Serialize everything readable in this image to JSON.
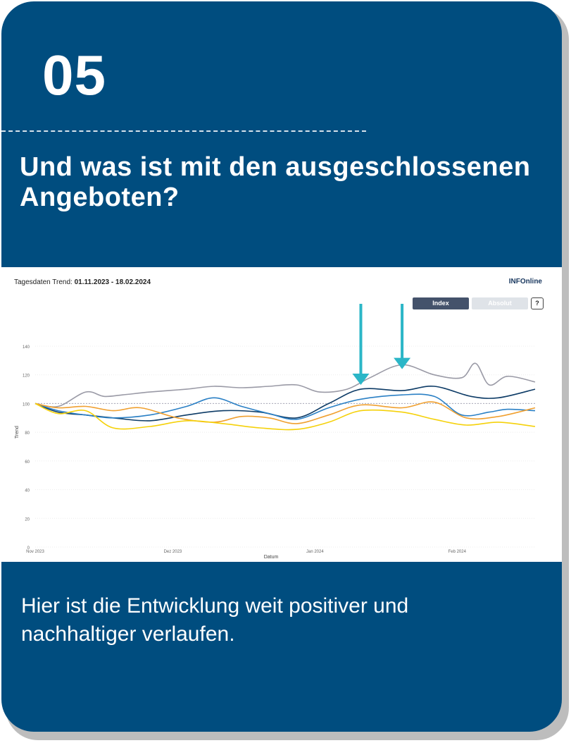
{
  "slide": {
    "number": "05",
    "heading": "Und was ist mit den ausgeschlossenen Angeboten?",
    "body": "Hier ist die Entwicklung weit positiver und nachhaltiger verlaufen.",
    "background_color": "#004d7f"
  },
  "panel": {
    "title_prefix": "Tagesdaten Trend:",
    "title_range": "01.11.2023 - 18.02.2024",
    "logo_text": "INFOnline",
    "buttons": {
      "index": "Index",
      "absolut": "Absolut",
      "help": "?"
    }
  },
  "chart_data": {
    "type": "line",
    "xlabel": "Datum",
    "ylabel": "Trend",
    "x_ticks": [
      {
        "label": "Nov 2023",
        "date": "2023-11-01"
      },
      {
        "label": "Dez 2023",
        "date": "2023-12-01"
      },
      {
        "label": "Jan 2024",
        "date": "2024-01-01"
      },
      {
        "label": "Feb 2024",
        "date": "2024-02-01"
      }
    ],
    "y_ticks": [
      0,
      20,
      40,
      60,
      80,
      100,
      120,
      140
    ],
    "ylim": [
      0,
      140
    ],
    "xlim": [
      "2023-11-01",
      "2024-02-18"
    ],
    "reference_line": 100,
    "grid": true,
    "annotations": [
      {
        "type": "arrow-down",
        "date": "2024-01-11",
        "value": 113,
        "color": "#2bb6c7"
      },
      {
        "type": "arrow-down",
        "date": "2024-01-20",
        "value": 124,
        "color": "#2bb6c7"
      }
    ],
    "series": [
      {
        "color": "#9a9aa6",
        "dates": [
          "2023-11-01",
          "2023-11-06",
          "2023-11-12",
          "2023-11-16",
          "2023-11-20",
          "2023-11-26",
          "2023-12-04",
          "2023-12-10",
          "2023-12-16",
          "2023-12-22",
          "2023-12-28",
          "2024-01-02",
          "2024-01-08",
          "2024-01-13",
          "2024-01-20",
          "2024-01-27",
          "2024-02-02",
          "2024-02-05",
          "2024-02-08",
          "2024-02-12",
          "2024-02-18"
        ],
        "values": [
          100,
          98,
          108,
          105,
          106,
          108,
          110,
          112,
          111,
          112,
          113,
          108,
          110,
          118,
          127,
          120,
          118,
          128,
          113,
          119,
          115
        ]
      },
      {
        "color": "#0d3b66",
        "dates": [
          "2023-11-01",
          "2023-11-06",
          "2023-11-12",
          "2023-11-18",
          "2023-11-26",
          "2023-12-04",
          "2023-12-12",
          "2023-12-20",
          "2023-12-28",
          "2024-01-04",
          "2024-01-11",
          "2024-01-20",
          "2024-01-27",
          "2024-02-04",
          "2024-02-10",
          "2024-02-18"
        ],
        "values": [
          100,
          94,
          92,
          90,
          88,
          92,
          95,
          94,
          90,
          100,
          110,
          109,
          112,
          105,
          104,
          110
        ]
      },
      {
        "color": "#2b80c5",
        "dates": [
          "2023-11-01",
          "2023-11-06",
          "2023-11-12",
          "2023-11-18",
          "2023-11-26",
          "2023-12-04",
          "2023-12-10",
          "2023-12-16",
          "2023-12-22",
          "2023-12-28",
          "2024-01-04",
          "2024-01-11",
          "2024-01-20",
          "2024-01-27",
          "2024-02-02",
          "2024-02-08",
          "2024-02-12",
          "2024-02-18"
        ],
        "values": [
          100,
          95,
          92,
          90,
          92,
          98,
          104,
          98,
          93,
          89,
          97,
          103,
          106,
          105,
          92,
          94,
          96,
          95
        ]
      },
      {
        "color": "#f0a030",
        "dates": [
          "2023-11-01",
          "2023-11-06",
          "2023-11-12",
          "2023-11-18",
          "2023-11-24",
          "2023-12-02",
          "2023-12-10",
          "2023-12-16",
          "2023-12-22",
          "2023-12-28",
          "2024-01-04",
          "2024-01-11",
          "2024-01-20",
          "2024-01-27",
          "2024-02-03",
          "2024-02-10",
          "2024-02-18"
        ],
        "values": [
          100,
          97,
          98,
          95,
          97,
          90,
          87,
          91,
          90,
          86,
          92,
          99,
          97,
          101,
          90,
          91,
          97
        ]
      },
      {
        "color": "#f5d10a",
        "dates": [
          "2023-11-01",
          "2023-11-06",
          "2023-11-12",
          "2023-11-18",
          "2023-11-26",
          "2023-12-04",
          "2023-12-12",
          "2023-12-20",
          "2023-12-28",
          "2024-01-04",
          "2024-01-11",
          "2024-01-20",
          "2024-01-27",
          "2024-02-03",
          "2024-02-10",
          "2024-02-18"
        ],
        "values": [
          100,
          93,
          95,
          83,
          84,
          88,
          86,
          83,
          82,
          87,
          95,
          94,
          89,
          85,
          87,
          84
        ]
      }
    ]
  }
}
